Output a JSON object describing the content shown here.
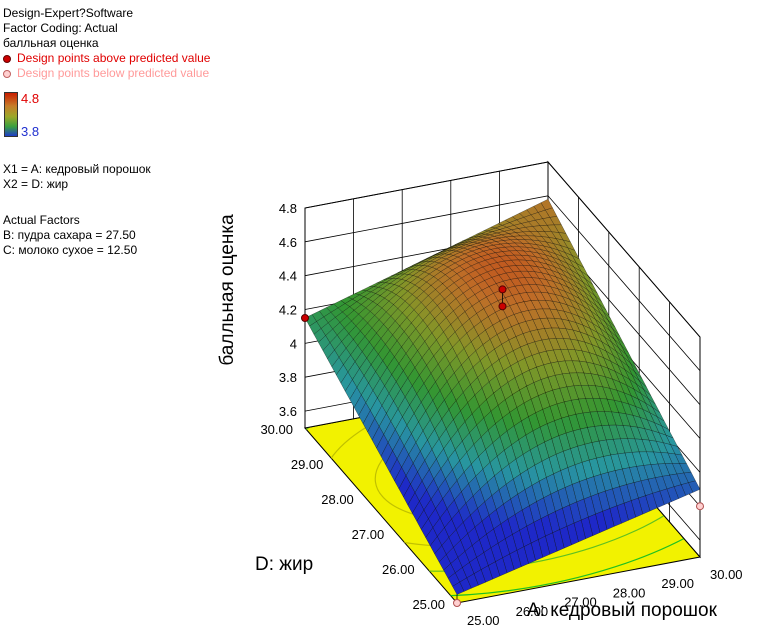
{
  "header": {
    "software": "Design-Expert?Software",
    "coding": "Factor Coding: Actual",
    "response": "балльная оценка",
    "above_legend": "Design points above predicted value",
    "below_legend": "Design points below predicted value"
  },
  "colorbar": {
    "max": "4.8",
    "min": "3.8",
    "max_color": "#e00000",
    "min_color": "#2030d0"
  },
  "variables": {
    "x1": "X1 = A: кедровый порошок",
    "x2": "X2 = D: жир"
  },
  "actual_factors": {
    "title": "Actual Factors",
    "b": "B: пудра сахара = 27.50",
    "c": "C: молоко сухое = 12.50"
  },
  "chart_data": {
    "type": "surface",
    "zlabel": "балльная оценка",
    "xlabel": "A: кедровый порошок",
    "ylabel": "D: жир",
    "x_ticks": [
      "25.00",
      "26.00",
      "27.00",
      "28.00",
      "29.00",
      "30.00"
    ],
    "y_ticks": [
      "25.00",
      "26.00",
      "27.00",
      "28.00",
      "29.00",
      "30.00"
    ],
    "z_ticks": [
      "3.6",
      "3.8",
      "4",
      "4.2",
      "4.4",
      "4.6",
      "4.8"
    ],
    "xlim": [
      25,
      30
    ],
    "ylim": [
      25,
      30
    ],
    "zlim": [
      3.5,
      4.8
    ],
    "colorscale": {
      "low": 3.8,
      "high": 4.8
    },
    "surface_corner_values": {
      "A25_D25": 3.55,
      "A30_D25": 3.9,
      "A25_D30": 4.15,
      "A30_D30": 4.58
    },
    "surface_peak": {
      "A": 27.8,
      "D": 28.2,
      "value": 4.65
    },
    "design_points": [
      {
        "A": 27.5,
        "D": 27.5,
        "value": 4.7,
        "position": "above"
      },
      {
        "A": 27.5,
        "D": 27.5,
        "value": 4.6,
        "position": "above"
      },
      {
        "A": 25,
        "D": 30,
        "value": 4.15,
        "position": "above"
      },
      {
        "A": 30,
        "D": 25,
        "value": 3.8,
        "position": "below"
      },
      {
        "A": 25,
        "D": 25,
        "value": 3.5,
        "position": "below"
      }
    ],
    "contour_floor": true,
    "grid": true
  }
}
